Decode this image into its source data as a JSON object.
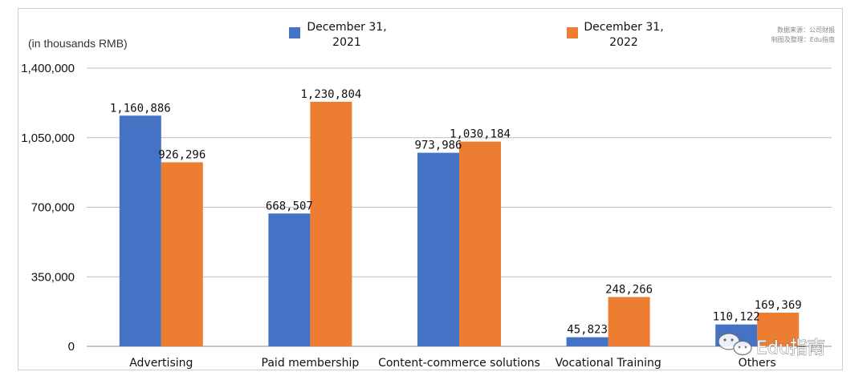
{
  "chart_data": {
    "type": "bar",
    "unit_label": "(in thousands RMB)",
    "categories": [
      "Advertising",
      "Paid membership",
      "Content-commerce solutions",
      "Vocational Training",
      "Others"
    ],
    "series": [
      {
        "name": "December 31, 2021",
        "name_lines": [
          "December 31,",
          "2021"
        ],
        "color": "#4472c4",
        "values": [
          1160886,
          668507,
          973986,
          45823,
          110122
        ],
        "labels": [
          "1,160,886",
          "668,507",
          "973,986",
          "45,823",
          "110,122"
        ]
      },
      {
        "name": "December 31, 2022",
        "name_lines": [
          "December 31,",
          "2022"
        ],
        "color": "#ed7d31",
        "values": [
          926296,
          1230804,
          1030184,
          248266,
          169369
        ],
        "labels": [
          "926,296",
          "1,230,804",
          "1,030,184",
          "248,266",
          "169,369"
        ]
      }
    ],
    "ylim": [
      0,
      1400000
    ],
    "yticks": [
      0,
      350000,
      700000,
      1050000,
      1400000
    ],
    "ytick_labels": [
      "0",
      "350,000",
      "700,000",
      "1,050,000",
      "1,400,000"
    ],
    "grid": true,
    "legend": "top"
  },
  "source_note": [
    "数据来源：公司财报",
    "制图及整理：Edu指南"
  ],
  "watermark": {
    "text": "Edu指南",
    "icon": "wechat-icon"
  }
}
